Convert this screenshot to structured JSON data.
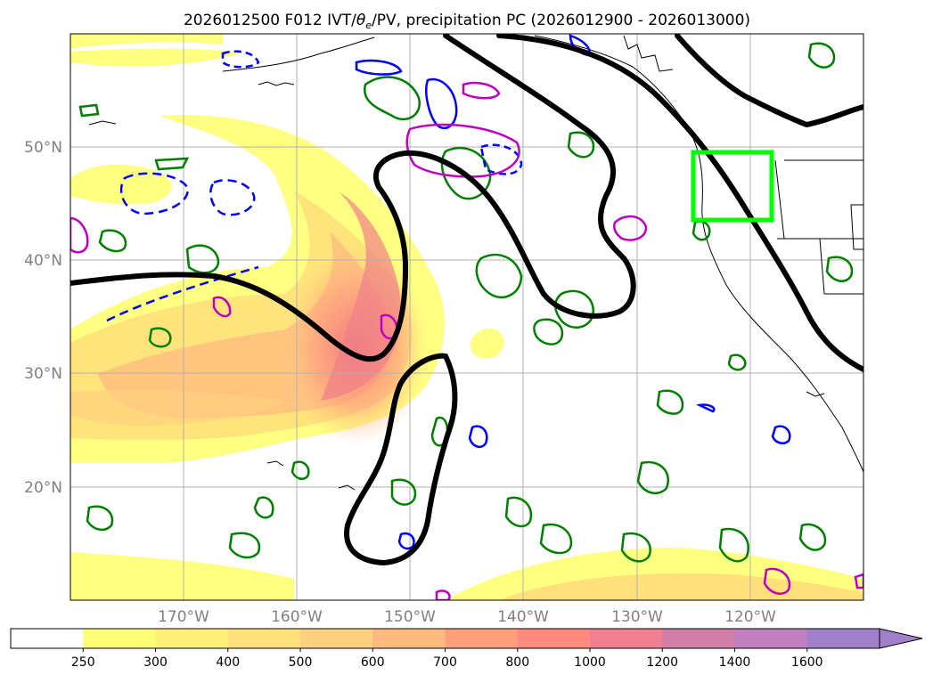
{
  "title": {
    "prefix": "2026012500 F012 IVT/",
    "theta": "θ",
    "theta_sub": "e",
    "suffix": "/PV, precipitation PC (2026012900 - 2026013000)"
  },
  "map": {
    "lon_range": [
      -180,
      -110
    ],
    "lat_range": [
      10,
      60
    ],
    "lat_labels": [
      {
        "lat": 50,
        "text": "50°N"
      },
      {
        "lat": 40,
        "text": "40°N"
      },
      {
        "lat": 30,
        "text": "30°N"
      },
      {
        "lat": 20,
        "text": "20°N"
      }
    ],
    "lon_labels": [
      {
        "lon": -170,
        "text": "170°W"
      },
      {
        "lon": -160,
        "text": "160°W"
      },
      {
        "lon": -150,
        "text": "150°W"
      },
      {
        "lon": -140,
        "text": "140°W"
      },
      {
        "lon": -130,
        "text": "130°W"
      },
      {
        "lon": -120,
        "text": "120°W"
      }
    ],
    "highlight_box": {
      "lon": [
        -125,
        -118
      ],
      "lat": [
        43.5,
        49.5
      ],
      "color": "#00ff00"
    },
    "colors": {
      "coast": "#000000",
      "grid": "#b0b0b0",
      "pv_contour": "#000000",
      "theta_e": "#008000",
      "blue": "#0000ff",
      "magenta": "#c000c0"
    }
  },
  "colorbar": {
    "levels": [
      "250",
      "300",
      "400",
      "500",
      "600",
      "700",
      "800",
      "1000",
      "1200",
      "1400",
      "1600"
    ],
    "colors": [
      "#ffffff",
      "#ffff77",
      "#fff07a",
      "#ffe07a",
      "#ffd080",
      "#ffba7f",
      "#ffa07a",
      "#ff8a80",
      "#f08090",
      "#d080a8",
      "#c080c0",
      "#a080c8"
    ]
  }
}
